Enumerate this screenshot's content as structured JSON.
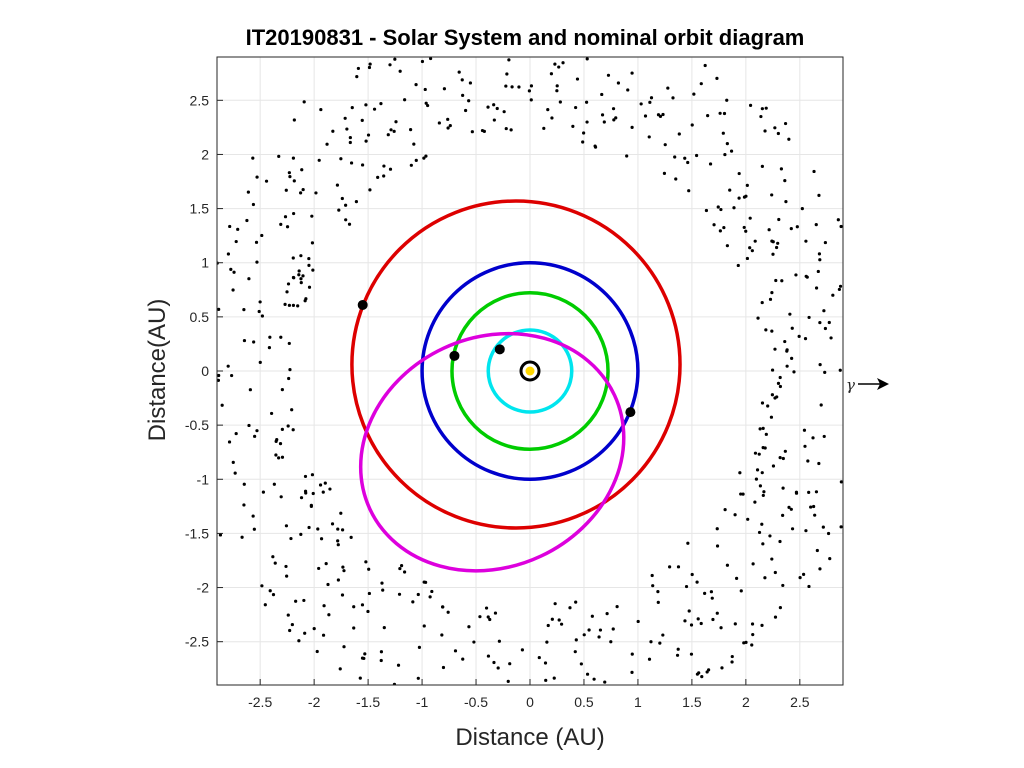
{
  "chart_data": {
    "type": "scatter",
    "title": "IT20190831 - Solar System and nominal orbit diagram",
    "xlabel": "Distance (AU)",
    "ylabel": "Distance(AU)",
    "xlim": [
      -2.9,
      2.9
    ],
    "ylim": [
      -2.9,
      2.9
    ],
    "xticks": [
      -2.5,
      -2,
      -1.5,
      -1,
      -0.5,
      0,
      0.5,
      1,
      1.5,
      2,
      2.5
    ],
    "yticks": [
      -2.5,
      -2,
      -1.5,
      -1,
      -0.5,
      0,
      0.5,
      1,
      1.5,
      2,
      2.5
    ],
    "grid": true,
    "annotation": "γ",
    "sun": {
      "x": 0,
      "y": 0,
      "color": "#ffd700",
      "ring_color": "#000000"
    },
    "orbits": [
      {
        "color": "#00e5ee",
        "cx": 0.0,
        "cy": 0.0,
        "rx": 0.387,
        "ry": 0.379,
        "body": {
          "x": -0.28,
          "y": 0.2
        }
      },
      {
        "color": "#00cc00",
        "cx": 0.0,
        "cy": 0.0,
        "rx": 0.723,
        "ry": 0.723,
        "body": {
          "x": -0.7,
          "y": 0.14
        }
      },
      {
        "color": "#0000cc",
        "cx": 0.0,
        "cy": 0.0,
        "rx": 1.0,
        "ry": 1.0,
        "body": {
          "x": 0.93,
          "y": -0.38
        }
      },
      {
        "color": "#dd0000",
        "cx": -0.13,
        "cy": 0.06,
        "rx": 1.52,
        "ry": 1.51,
        "body": {
          "x": -1.55,
          "y": 0.61
        }
      },
      {
        "color": "#dd00dd",
        "cx": -0.35,
        "cy": -0.75,
        "rx": 1.25,
        "ry": 1.06,
        "rotate": -25,
        "body": null
      }
    ],
    "asteroid_belt": {
      "r_inner": 2.15,
      "r_outer": 3.3,
      "count": 700,
      "color": "#000000"
    }
  }
}
